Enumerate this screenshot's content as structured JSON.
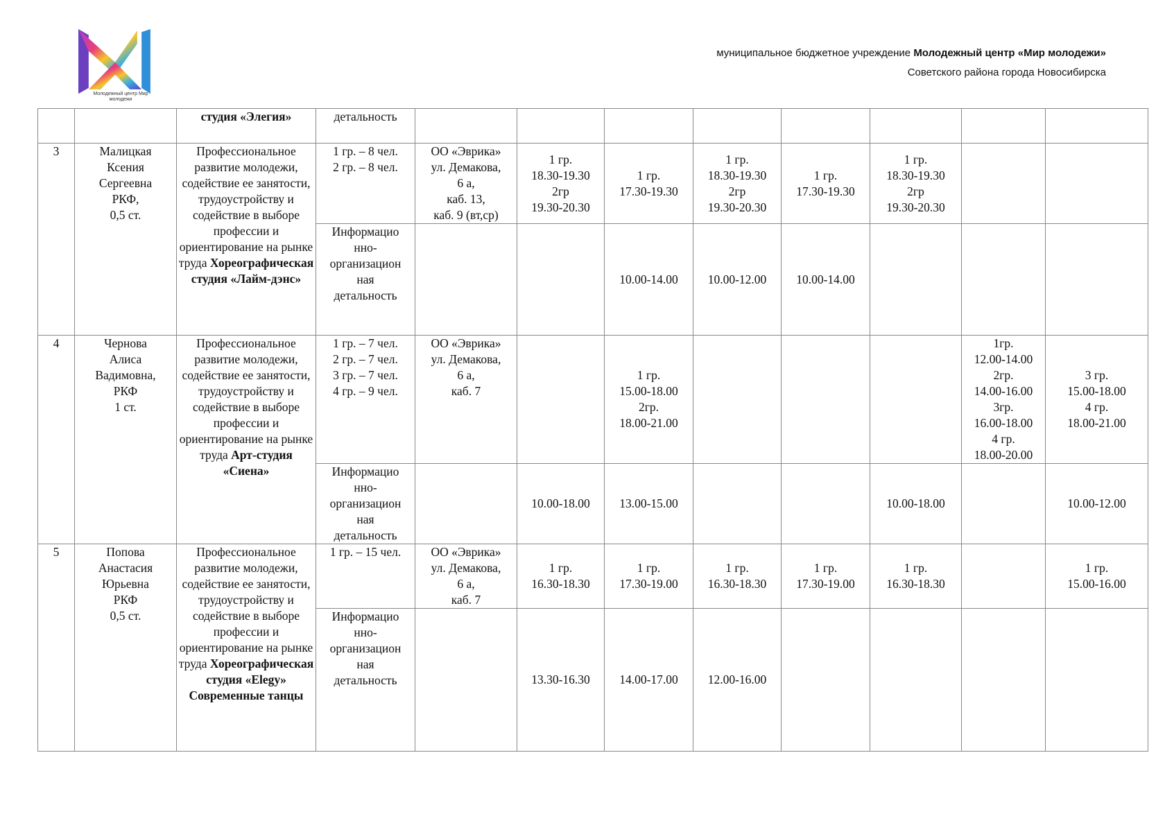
{
  "header": {
    "org_prefix": "муниципальное бюджетное учреждение ",
    "org_name": "Молодежный центр «Мир молодежи»",
    "org_district": "Советского района города Новосибирска",
    "logo_text": "Молодежный центр Мир молодежи"
  },
  "table": {
    "continuation": {
      "title": "студия «Элегия»",
      "activity": "детальность"
    },
    "entries": [
      {
        "number": "3",
        "teacher": "Малицкая\nКсения\nСергеевна\nРКФ,\n0,5 ст.",
        "description": "Профессиональное развитие молодежи, содействие ее занятости, трудоустройству и содействие в выборе профессии и ориентирование на рынке труда",
        "studio": "Хореографическая студия «Лайм-дэнс»",
        "groups": "1 гр. – 8 чел.\n2 гр. – 8 чел.",
        "location": "ОО «Эврика»\nул. Демакова,\n6 а,\nкаб. 13,\nкаб. 9 (вт,ср)",
        "times": [
          "1 гр.\n18.30-19.30\n2гр\n19.30-20.30",
          "1 гр.\n17.30-19.30",
          "1 гр.\n18.30-19.30\n2гр\n19.30-20.30",
          "1 гр.\n17.30-19.30",
          "1 гр.\n18.30-19.30\n2гр\n19.30-20.30",
          "",
          ""
        ],
        "activity2": "Информацио\nнно-\nорганизацион\nная\nдетальность",
        "location2": "",
        "times2": [
          "",
          "10.00-14.00",
          "10.00-12.00",
          "10.00-14.00",
          "",
          "",
          ""
        ]
      },
      {
        "number": "4",
        "teacher": "Чернова\nАлиса\nВадимовна,\nРКФ\n1 ст.",
        "description": "Профессиональное развитие молодежи, содействие ее занятости, трудоустройству и содействие в выборе профессии и ориентирование на рынке труда",
        "studio": "Арт-студия «Сиена»",
        "groups": "1 гр. – 7 чел.\n2 гр. – 7 чел.\n3 гр. – 7 чел.\n4 гр. – 9 чел.",
        "location": "ОО «Эврика»\nул. Демакова,\n6 а,\nкаб. 7",
        "times": [
          "",
          "1 гр.\n15.00-18.00\n2гр.\n18.00-21.00",
          "",
          "",
          "",
          "1гр.\n12.00-14.00\n2гр.\n14.00-16.00\n3гр.\n16.00-18.00\n4 гр.\n18.00-20.00",
          "3 гр.\n15.00-18.00\n4 гр.\n18.00-21.00"
        ],
        "activity2": "Информацио\nнно-\nорганизацион\nная\nдетальность",
        "location2": "",
        "times2": [
          "10.00-18.00",
          "13.00-15.00",
          "",
          "",
          "10.00-18.00",
          "",
          "10.00-12.00"
        ]
      },
      {
        "number": "5",
        "teacher": "Попова\nАнастасия\nЮрьевна\nРКФ\n0,5 ст.",
        "description": "Профессиональное развитие молодежи, содействие ее занятости, трудоустройству и содействие в выборе профессии и ориентирование на рынке труда",
        "studio": "Хореографическая студия «Elegy» Современные танцы",
        "groups": "1 гр. – 15 чел.",
        "location": "ОО «Эврика»\nул. Демакова,\n6 а,\nкаб. 7",
        "times": [
          "1 гр.\n16.30-18.30",
          "1 гр.\n17.30-19.00",
          "1 гр.\n16.30-18.30",
          "1 гр.\n17.30-19.00",
          "1 гр.\n16.30-18.30",
          "",
          "1 гр.\n15.00-16.00"
        ],
        "activity2": "Информацио\nнно-\nорганизацион\nная\nдетальность",
        "location2": "",
        "times2": [
          "13.30-16.30",
          "14.00-17.00",
          "12.00-16.00",
          "",
          "",
          "",
          ""
        ]
      }
    ]
  }
}
